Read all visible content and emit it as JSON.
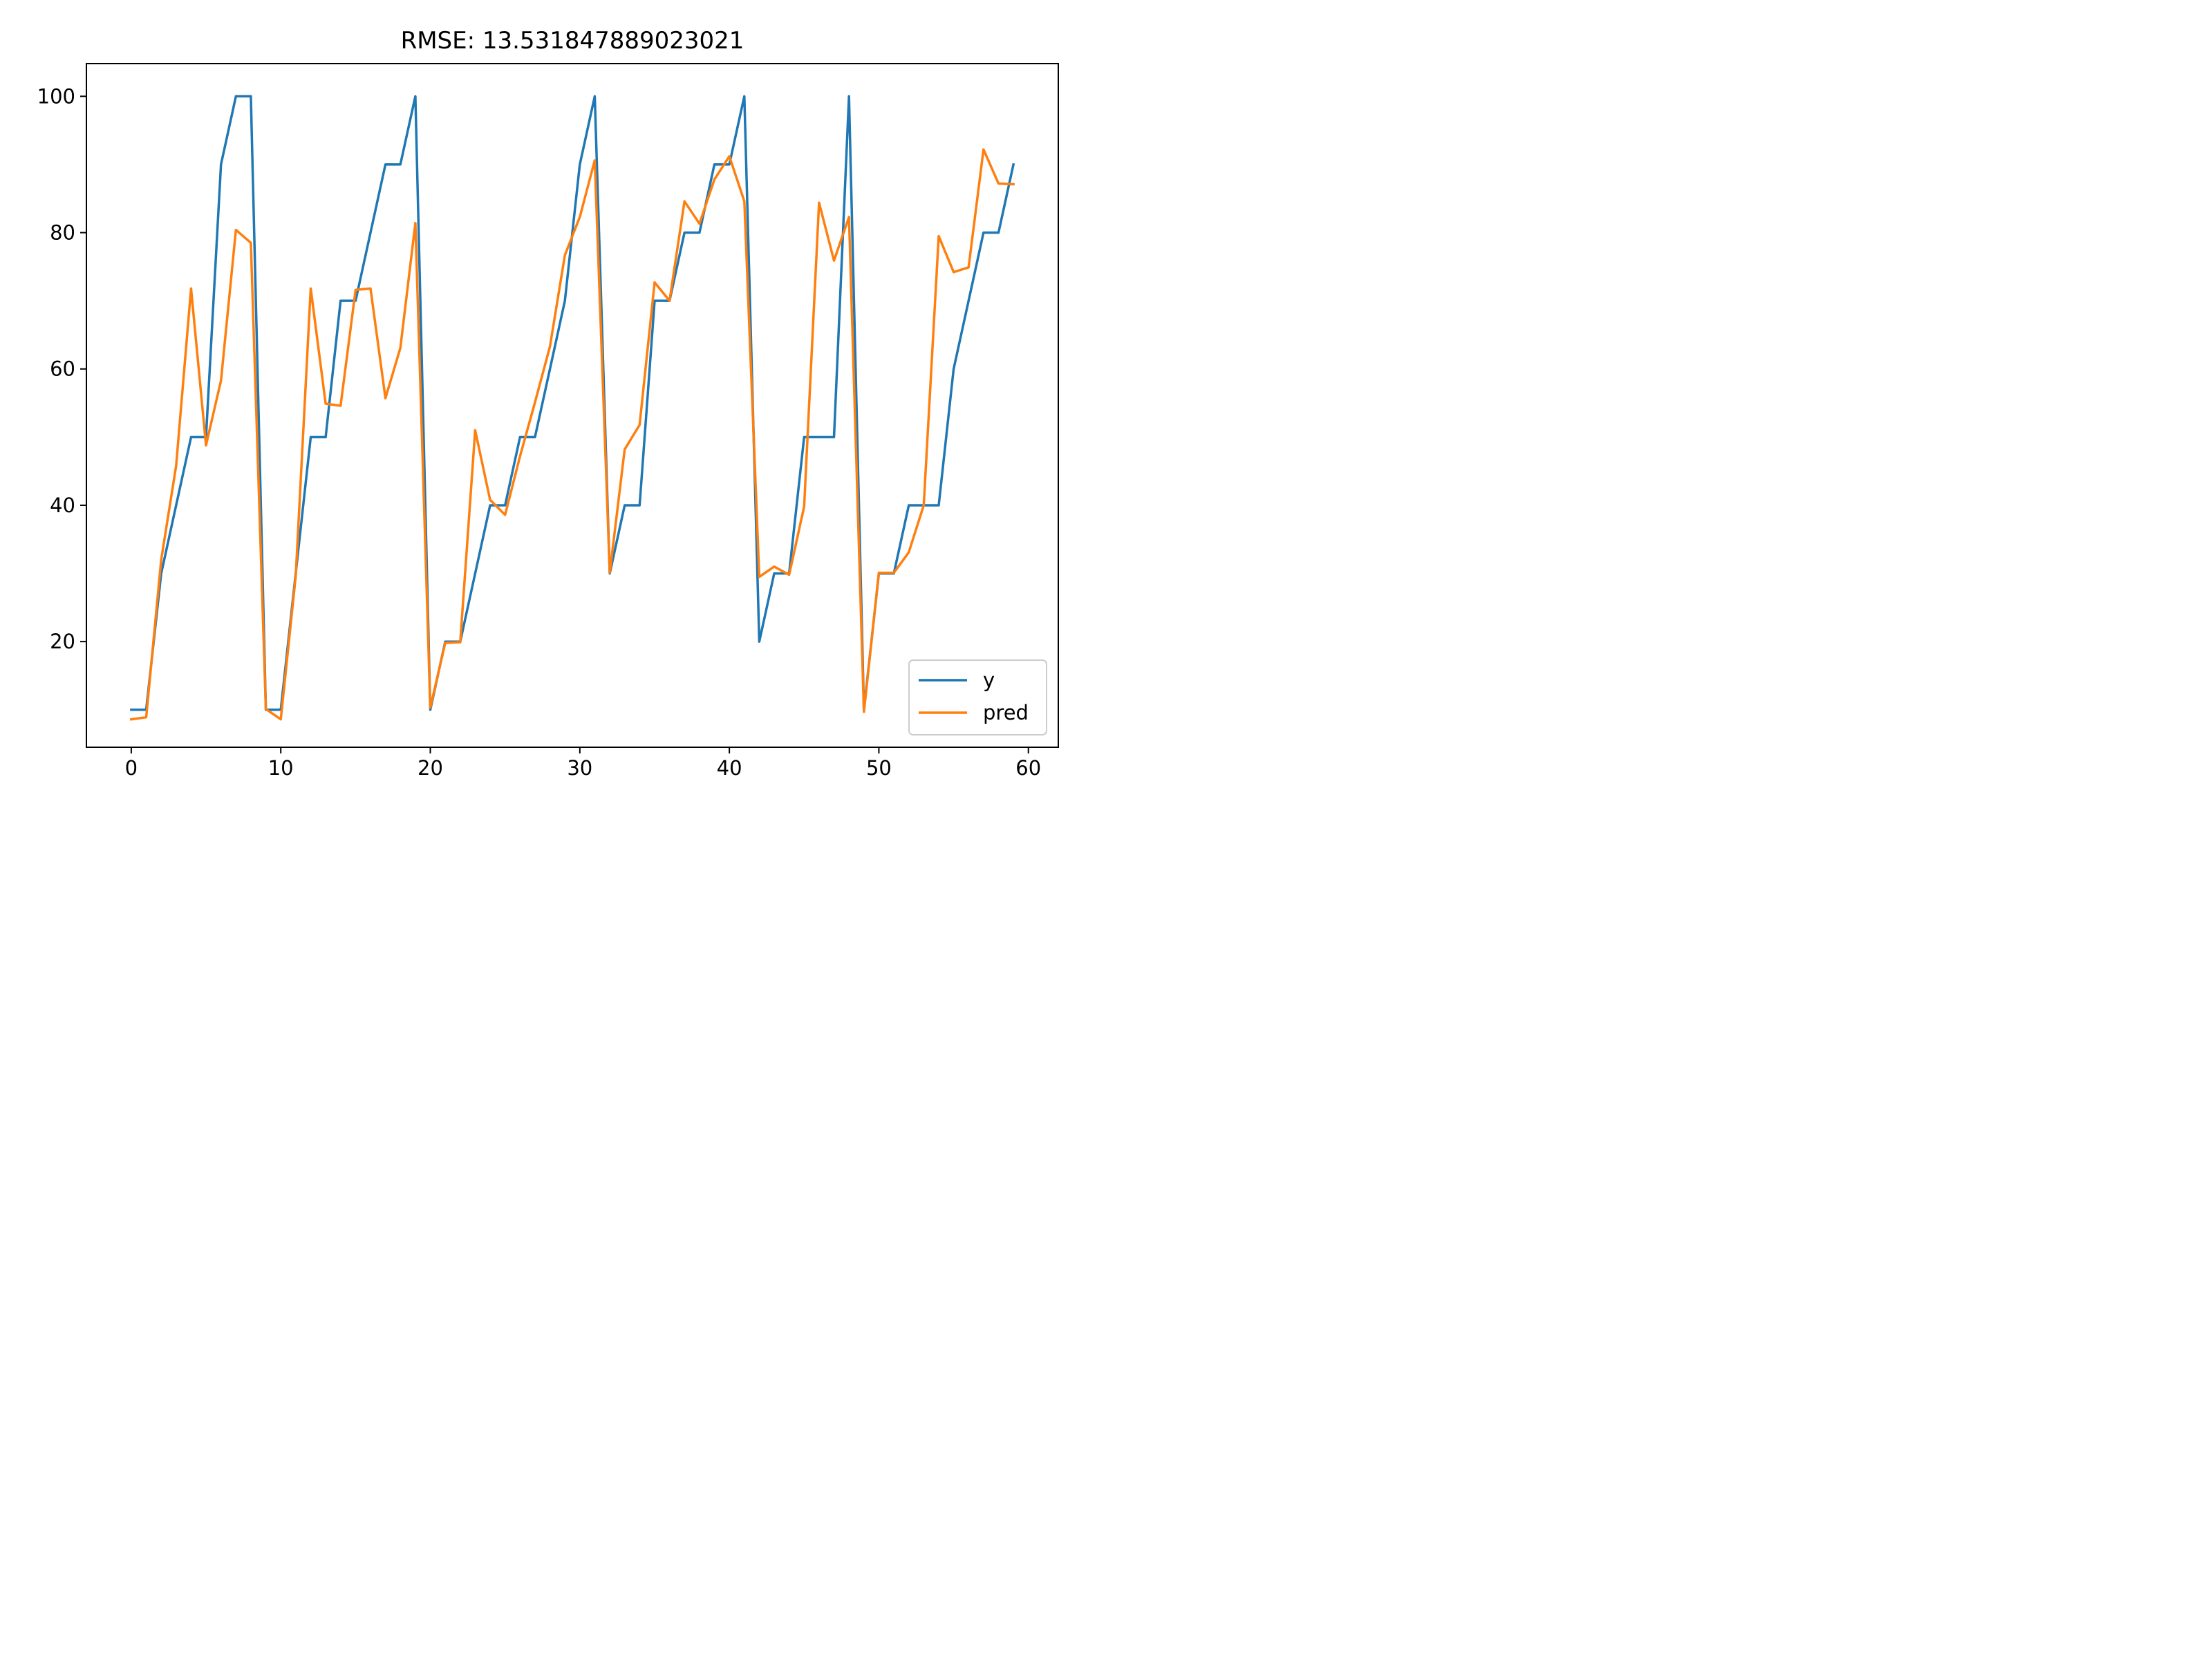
{
  "chart_data": {
    "type": "line",
    "title": "RMSE: 13.531847889023021",
    "xlabel": "",
    "ylabel": "",
    "xlim": [
      -3,
      62
    ],
    "ylim": [
      4.5,
      104.8
    ],
    "x_ticks": [
      0,
      10,
      20,
      30,
      40,
      50,
      60
    ],
    "y_ticks": [
      20,
      40,
      60,
      80,
      100
    ],
    "grid": false,
    "legend_position": "lower right",
    "x": [
      0,
      1,
      2,
      3,
      4,
      5,
      6,
      7,
      8,
      9,
      10,
      11,
      12,
      13,
      14,
      15,
      16,
      17,
      18,
      19,
      20,
      21,
      22,
      23,
      24,
      25,
      26,
      27,
      28,
      29,
      30,
      31,
      32,
      33,
      34,
      35,
      36,
      37,
      38,
      39,
      40,
      41,
      42,
      43,
      44,
      45,
      46,
      47,
      48,
      49,
      50,
      51,
      52,
      53,
      54,
      55,
      56,
      57,
      58,
      59
    ],
    "series": [
      {
        "name": "y",
        "color": "#1f77b4",
        "values": [
          10,
          10,
          30,
          40,
          50,
          50,
          90,
          100,
          100,
          10,
          10,
          30,
          50,
          50,
          70,
          70,
          80,
          90,
          90,
          100,
          10,
          20,
          20,
          30,
          40,
          40,
          50,
          50,
          60,
          70,
          90,
          100,
          30,
          40,
          40,
          70,
          70,
          80,
          80,
          90,
          90,
          100,
          20,
          30,
          30,
          50,
          50,
          50,
          100,
          10,
          30,
          30,
          40,
          40,
          40,
          60,
          70,
          80,
          80,
          90
        ]
      },
      {
        "name": "pred",
        "color": "#ff7f0e",
        "values": [
          8.6,
          8.9,
          32.0,
          45.8,
          71.8,
          48.8,
          58.3,
          80.4,
          78.5,
          10.1,
          8.6,
          29.6,
          71.8,
          54.9,
          54.6,
          71.6,
          71.8,
          55.7,
          63.1,
          81.4,
          10.3,
          19.8,
          19.9,
          51.0,
          40.8,
          38.6,
          47.2,
          55.1,
          63.3,
          76.7,
          82.3,
          90.6,
          30.1,
          48.2,
          51.8,
          72.7,
          70.0,
          84.6,
          81.3,
          87.8,
          91.2,
          84.6,
          29.5,
          31.0,
          29.8,
          39.8,
          84.4,
          75.9,
          82.3,
          9.7,
          30.1,
          30.1,
          33.1,
          40.0,
          79.5,
          74.2,
          74.9,
          92.2,
          87.2,
          87.1
        ]
      }
    ]
  }
}
